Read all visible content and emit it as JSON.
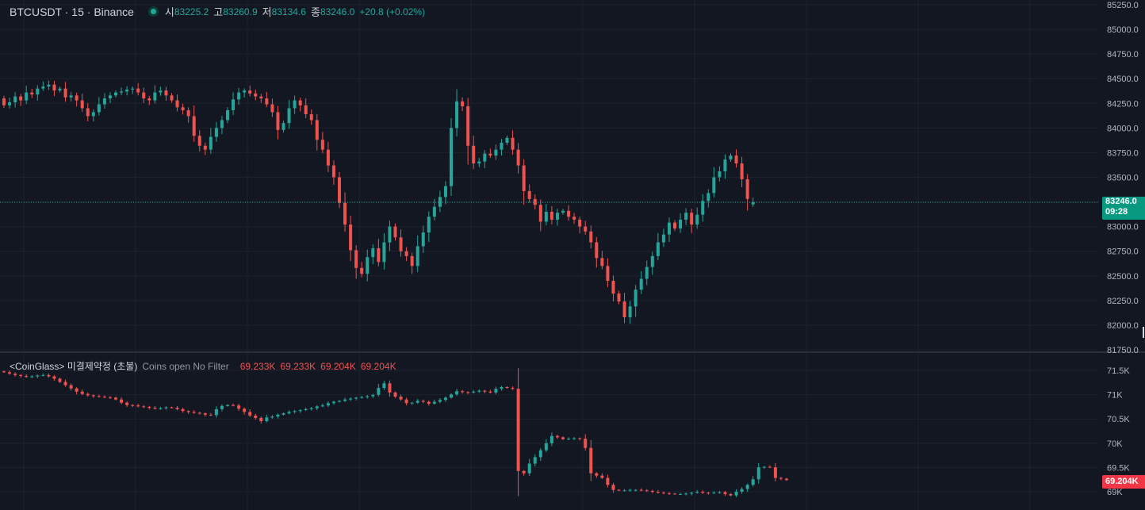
{
  "header": {
    "symbol": "BTCUSDT · 15 · Binance",
    "open_label": "시",
    "open": "83225.2",
    "high_label": "고",
    "high": "83260.9",
    "low_label": "저",
    "low": "83134.6",
    "close_label": "종",
    "close": "83246.0",
    "change": "+20.8 (+0.02%)"
  },
  "indicator": {
    "name": "<CoinGlass> 미결제약정 (초불)",
    "filter": "Coins open No Filter",
    "values": [
      "69.233K",
      "69.233K",
      "69.204K",
      "69.204K"
    ]
  },
  "price_tag": {
    "value": "83246.0",
    "countdown": "09:28"
  },
  "oi_tag": "69.204K",
  "colors": {
    "up": "#26a69a",
    "down": "#ef5350",
    "background": "#131722",
    "grid": "#1e222d"
  },
  "chart_data": [
    {
      "type": "candlestick",
      "pane": "price",
      "ylim": [
        81750,
        85250
      ],
      "y_ticks": [
        "85250.0",
        "85000.0",
        "84750.0",
        "84500.0",
        "84250.0",
        "84000.0",
        "83750.0",
        "83500.0",
        "83250.0",
        "83000.0",
        "82750.0",
        "82500.0",
        "82250.0",
        "82000.0",
        "81750.0"
      ],
      "last_price": 83246.0,
      "close": [
        84230,
        84260,
        84320,
        84280,
        84360,
        84340,
        84400,
        84420,
        84440,
        84380,
        84400,
        84310,
        84330,
        84280,
        84200,
        84120,
        84160,
        84240,
        84300,
        84330,
        84360,
        84370,
        84390,
        84400,
        84360,
        84300,
        84280,
        84360,
        84380,
        84330,
        84280,
        84210,
        84180,
        84120,
        83920,
        83820,
        83780,
        83910,
        84000,
        84080,
        84180,
        84290,
        84360,
        84380,
        84350,
        84320,
        84300,
        84240,
        84160,
        83980,
        84050,
        84200,
        84280,
        84230,
        84140,
        84080,
        83880,
        83780,
        83620,
        83500,
        83240,
        83020,
        82760,
        82580,
        82520,
        82690,
        82780,
        82640,
        82840,
        83000,
        82890,
        82750,
        82700,
        82600,
        82800,
        82940,
        83100,
        83200,
        83300,
        83410,
        84000,
        84270,
        84220,
        83820,
        83640,
        83660,
        83740,
        83720,
        83780,
        83850,
        83900,
        83780,
        83620,
        83360,
        83280,
        83220,
        83050,
        83150,
        83070,
        83140,
        83160,
        83100,
        83070,
        83000,
        82950,
        82840,
        82680,
        82600,
        82450,
        82320,
        82240,
        82080,
        82190,
        82360,
        82470,
        82590,
        82700,
        82840,
        82920,
        83040,
        82980,
        83070,
        83140,
        83020,
        83120,
        83260,
        83340,
        83500,
        83560,
        83680,
        83720,
        83640,
        83480,
        83280,
        83246
      ],
      "open": [
        84300,
        84230,
        84260,
        84320,
        84280,
        84360,
        84340,
        84400,
        84420,
        84440,
        84380,
        84400,
        84310,
        84330,
        84280,
        84200,
        84120,
        84160,
        84240,
        84300,
        84330,
        84360,
        84370,
        84390,
        84400,
        84360,
        84300,
        84280,
        84360,
        84380,
        84330,
        84280,
        84210,
        84180,
        84120,
        83920,
        83820,
        83780,
        83910,
        84000,
        84080,
        84180,
        84290,
        84360,
        84380,
        84350,
        84320,
        84300,
        84240,
        84160,
        83980,
        84050,
        84200,
        84280,
        84230,
        84140,
        84080,
        83880,
        83780,
        83620,
        83500,
        83240,
        83020,
        82760,
        82580,
        82520,
        82690,
        82780,
        82640,
        82840,
        83000,
        82890,
        82750,
        82700,
        82600,
        82800,
        82940,
        83100,
        83200,
        83300,
        83410,
        84000,
        84270,
        84220,
        83820,
        83640,
        83660,
        83740,
        83720,
        83780,
        83850,
        83900,
        83780,
        83620,
        83360,
        83280,
        83220,
        83050,
        83150,
        83070,
        83140,
        83160,
        83100,
        83070,
        83000,
        82950,
        82840,
        82680,
        82600,
        82450,
        82320,
        82240,
        82080,
        82190,
        82360,
        82470,
        82590,
        82700,
        82840,
        82920,
        83040,
        82980,
        83070,
        83140,
        83020,
        83120,
        83260,
        83340,
        83500,
        83560,
        83680,
        83720,
        83640,
        83480,
        83225.2
      ]
    },
    {
      "type": "candlestick",
      "pane": "open-interest",
      "ylim": [
        68950,
        71580
      ],
      "y_ticks": [
        "71.5K",
        "71K",
        "70.5K",
        "70K",
        "69.5K",
        "69K"
      ],
      "last_value": 69204,
      "close": [
        71540,
        71510,
        71480,
        71460,
        71440,
        71450,
        71470,
        71480,
        71450,
        71400,
        71330,
        71260,
        71190,
        71120,
        71070,
        71040,
        71020,
        71010,
        71000,
        70990,
        70950,
        70880,
        70830,
        70820,
        70800,
        70790,
        70770,
        70750,
        70760,
        70780,
        70770,
        70740,
        70700,
        70680,
        70660,
        70650,
        70620,
        70610,
        70740,
        70810,
        70830,
        70820,
        70750,
        70680,
        70600,
        70550,
        70480,
        70560,
        70580,
        70620,
        70650,
        70680,
        70700,
        70720,
        70740,
        70760,
        70800,
        70820,
        70870,
        70900,
        70920,
        70950,
        70970,
        70990,
        71000,
        71020,
        71050,
        71200,
        71300,
        71100,
        71010,
        70950,
        70870,
        70880,
        70920,
        70900,
        70860,
        70900,
        70940,
        70990,
        71060,
        71130,
        71110,
        71100,
        71120,
        71140,
        71120,
        71100,
        71180,
        71220,
        71200,
        71180,
        69400,
        69350,
        69560,
        69700,
        69850,
        70000,
        70160,
        70130,
        70090,
        70100,
        70110,
        70100,
        69900,
        69350,
        69300,
        69250,
        69100,
        68990,
        68980,
        68980,
        68990,
        68990,
        68980,
        68970,
        68950,
        68930,
        68920,
        68910,
        68900,
        68900,
        68910,
        68930,
        68950,
        68930,
        68920,
        68930,
        68940,
        68900,
        68870,
        68950,
        69010,
        69100,
        69220,
        69480,
        69490,
        69480,
        69250,
        69233,
        69204
      ],
      "open": [
        71560,
        71540,
        71510,
        71480,
        71460,
        71440,
        71450,
        71470,
        71480,
        71450,
        71400,
        71330,
        71260,
        71190,
        71120,
        71070,
        71040,
        71020,
        71010,
        71000,
        70990,
        70950,
        70880,
        70830,
        70820,
        70800,
        70790,
        70770,
        70750,
        70760,
        70780,
        70770,
        70740,
        70700,
        70680,
        70660,
        70650,
        70620,
        70610,
        70740,
        70810,
        70830,
        70820,
        70750,
        70680,
        70600,
        70550,
        70480,
        70560,
        70580,
        70620,
        70650,
        70680,
        70700,
        70720,
        70740,
        70760,
        70800,
        70820,
        70870,
        70900,
        70920,
        70950,
        70970,
        70990,
        71000,
        71020,
        71050,
        71200,
        71300,
        71100,
        71010,
        70950,
        70870,
        70880,
        70920,
        70900,
        70860,
        70900,
        70940,
        70990,
        71060,
        71130,
        71110,
        71100,
        71120,
        71140,
        71120,
        71100,
        71180,
        71220,
        71200,
        71180,
        69400,
        69350,
        69560,
        69700,
        69850,
        70000,
        70160,
        70130,
        70090,
        70100,
        70110,
        70100,
        69900,
        69350,
        69300,
        69250,
        69100,
        68990,
        68980,
        68980,
        68990,
        68990,
        68980,
        68970,
        68950,
        68930,
        68920,
        68910,
        68900,
        68900,
        68910,
        68930,
        68950,
        68930,
        68920,
        68930,
        68940,
        68900,
        68870,
        68950,
        69010,
        69100,
        69220,
        69480,
        69490,
        69480,
        69250,
        69233
      ]
    }
  ]
}
